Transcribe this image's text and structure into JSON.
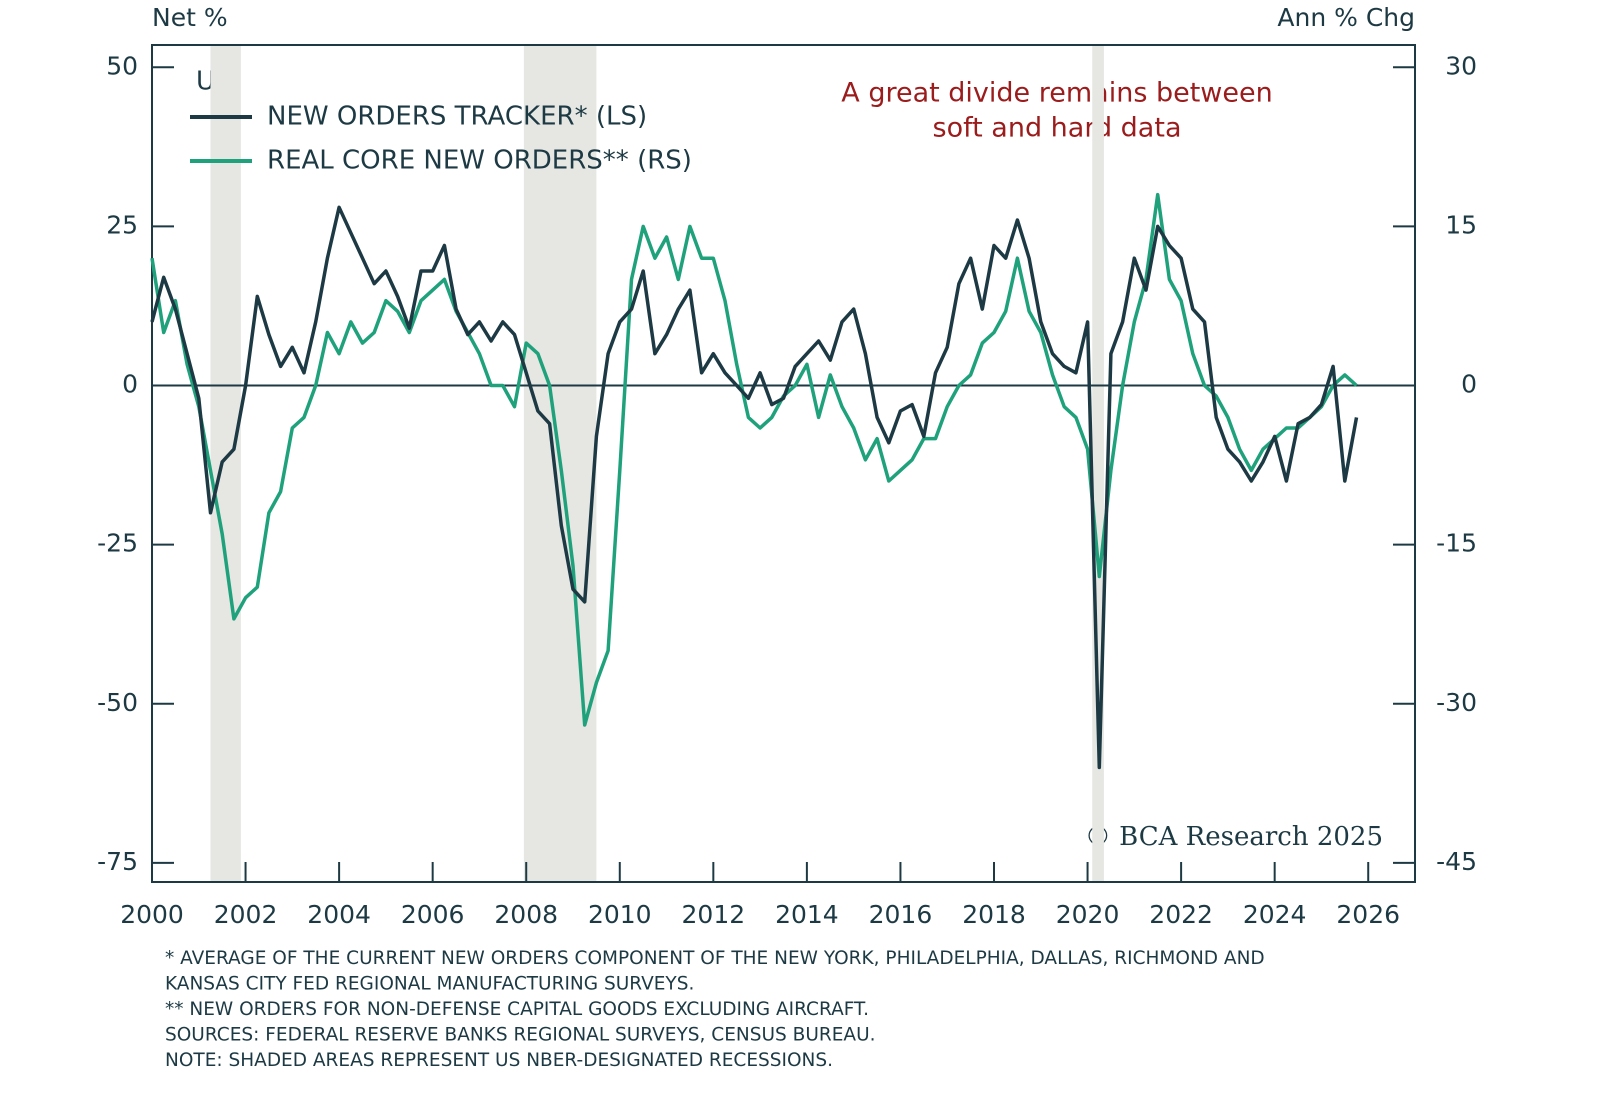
{
  "chart_data": {
    "type": "line",
    "y_label": "Net %",
    "y2_label": "Ann % Chg",
    "legend_title": "US:",
    "annotation": [
      "A great divide remains between",
      "soft and hard data"
    ],
    "copyright": "© BCA Research 2025",
    "footnotes": [
      "* AVERAGE OF THE CURRENT NEW ORDERS COMPONENT OF THE NEW YORK, PHILADELPHIA, DALLAS, RICHMOND AND",
      "KANSAS CITY FED REGIONAL MANUFACTURING SURVEYS.",
      "** NEW ORDERS FOR NON-DEFENSE CAPITAL GOODS EXCLUDING AIRCRAFT.",
      "SOURCES: FEDERAL RESERVE BANKS REGIONAL SURVEYS, CENSUS BUREAU.",
      "NOTE: SHADED AREAS REPRESENT US NBER-DESIGNATED RECESSIONS."
    ],
    "xlim": [
      2000,
      2027
    ],
    "xticks": [
      2000,
      2002,
      2004,
      2006,
      2008,
      2010,
      2012,
      2014,
      2016,
      2018,
      2020,
      2022,
      2024,
      2026
    ],
    "ylim": [
      -78,
      53.5
    ],
    "yticks": [
      50,
      25,
      0,
      -25,
      -50,
      -75
    ],
    "y2lim": [
      -46.8,
      32.1
    ],
    "y2ticks": [
      30,
      15,
      0,
      -15,
      -30,
      -45
    ],
    "recessions": [
      [
        2001.25,
        2001.9
      ],
      [
        2007.95,
        2009.5
      ],
      [
        2020.1,
        2020.35
      ]
    ],
    "recession_color": "#e6e6e3",
    "x": [
      2000,
      2000.25,
      2000.5,
      2000.75,
      2001,
      2001.25,
      2001.5,
      2001.75,
      2002,
      2002.25,
      2002.5,
      2002.75,
      2003,
      2003.25,
      2003.5,
      2003.75,
      2004,
      2004.25,
      2004.5,
      2004.75,
      2005,
      2005.25,
      2005.5,
      2005.75,
      2006,
      2006.25,
      2006.5,
      2006.75,
      2007,
      2007.25,
      2007.5,
      2007.75,
      2008,
      2008.25,
      2008.5,
      2008.75,
      2009,
      2009.25,
      2009.5,
      2009.75,
      2010,
      2010.25,
      2010.5,
      2010.75,
      2011,
      2011.25,
      2011.5,
      2011.75,
      2012,
      2012.25,
      2012.5,
      2012.75,
      2013,
      2013.25,
      2013.5,
      2013.75,
      2014,
      2014.25,
      2014.5,
      2014.75,
      2015,
      2015.25,
      2015.5,
      2015.75,
      2016,
      2016.25,
      2016.5,
      2016.75,
      2017,
      2017.25,
      2017.5,
      2017.75,
      2018,
      2018.25,
      2018.5,
      2018.75,
      2019,
      2019.25,
      2019.5,
      2019.75,
      2020,
      2020.25,
      2020.5,
      2020.75,
      2021,
      2021.25,
      2021.5,
      2021.75,
      2022,
      2022.25,
      2022.5,
      2022.75,
      2023,
      2023.25,
      2023.5,
      2023.75,
      2024,
      2024.25,
      2024.5,
      2024.75,
      2025,
      2025.25,
      2025.5,
      2025.75
    ],
    "series": [
      {
        "name": "NEW ORDERS TRACKER* (LS)",
        "color": "#1d3a44",
        "axis": "y",
        "values": [
          10,
          17,
          12,
          5,
          -2,
          -20,
          -12,
          -10,
          0,
          14,
          8,
          3,
          6,
          2,
          10,
          20,
          28,
          24,
          20,
          16,
          18,
          14,
          9,
          18,
          18,
          22,
          12,
          8,
          10,
          7,
          10,
          8,
          2,
          -4,
          -6,
          -22,
          -32,
          -34,
          -8,
          5,
          10,
          12,
          18,
          5,
          8,
          12,
          15,
          2,
          5,
          2,
          0,
          -2,
          2,
          -3,
          -2,
          3,
          5,
          7,
          4,
          10,
          12,
          5,
          -5,
          -9,
          -4,
          -3,
          -8,
          2,
          6,
          16,
          20,
          12,
          22,
          20,
          26,
          20,
          10,
          5,
          3,
          2,
          10,
          -60,
          5,
          10,
          20,
          15,
          25,
          22,
          20,
          12,
          10,
          -5,
          -10,
          -12,
          -15,
          -12,
          -8,
          -15,
          -6,
          -5,
          -3,
          3,
          -15,
          -5
        ]
      },
      {
        "name": "REAL CORE NEW ORDERS** (RS)",
        "color": "#1fa27b",
        "axis": "y2",
        "values": [
          12,
          5,
          8,
          2,
          -2,
          -8,
          -14,
          -22,
          -20,
          -19,
          -12,
          -10,
          -4,
          -3,
          0,
          5,
          3,
          6,
          4,
          5,
          8,
          7,
          5,
          8,
          9,
          10,
          7,
          5,
          3,
          0,
          0,
          -2,
          4,
          3,
          0,
          -8,
          -17,
          -32,
          -28,
          -25,
          -8,
          10,
          15,
          12,
          14,
          10,
          15,
          12,
          12,
          8,
          2,
          -3,
          -4,
          -3,
          -1,
          0,
          2,
          -3,
          1,
          -2,
          -4,
          -7,
          -5,
          -9,
          -8,
          -7,
          -5,
          -5,
          -2,
          0,
          1,
          4,
          5,
          7,
          12,
          7,
          5,
          1,
          -2,
          -3,
          -6,
          -18,
          -8,
          0,
          6,
          10,
          18,
          10,
          8,
          3,
          0,
          -1,
          -3,
          -6,
          -8,
          -6,
          -5,
          -4,
          -4,
          -3,
          -2,
          0,
          1,
          0
        ]
      }
    ]
  }
}
